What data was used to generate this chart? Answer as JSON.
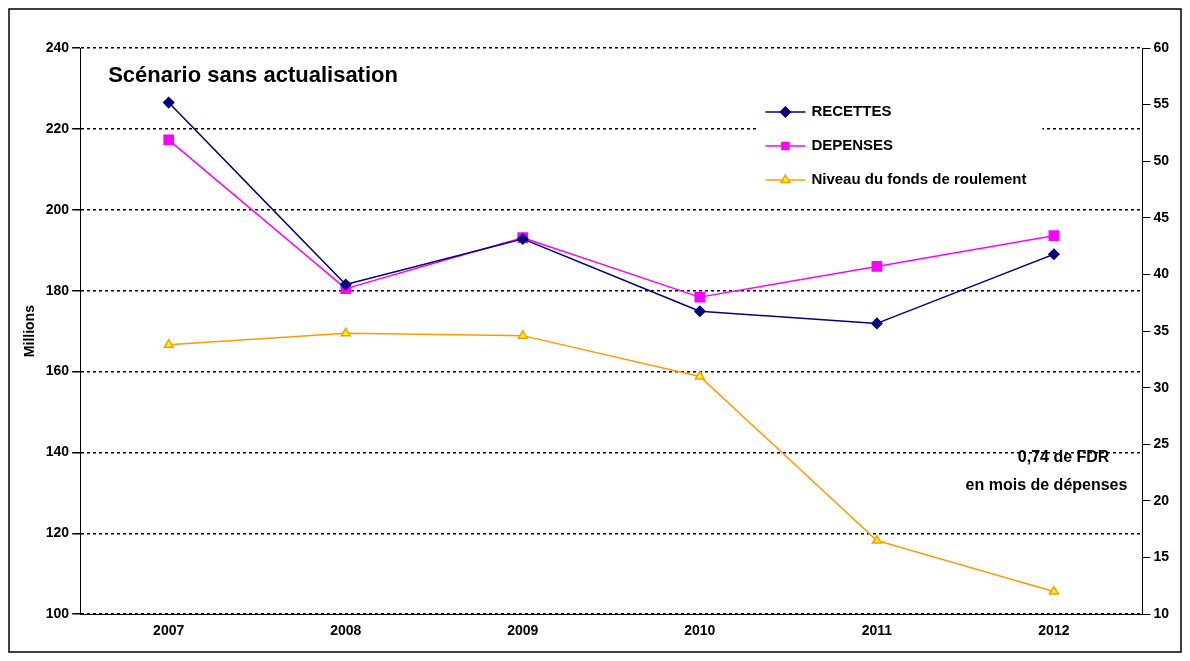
{
  "chart_data": {
    "type": "line",
    "title": "Scénario sans actualisation",
    "ylabel": "Millions",
    "categories": [
      "2007",
      "2008",
      "2009",
      "2010",
      "2011",
      "2012"
    ],
    "series": [
      {
        "name": "RECETTES",
        "color": "#000080",
        "marker": "diamond",
        "values": [
          226.5,
          181.5,
          192.8,
          174.9,
          171.9,
          189
        ]
      },
      {
        "name": "DEPENSES",
        "color": "#ff00ff",
        "marker": "square",
        "values": [
          217.3,
          180.5,
          193.1,
          178.4,
          186,
          193.6
        ]
      },
      {
        "name": "Niveau du fonds de roulement",
        "color": "#ff9900",
        "marker": "triangle",
        "axis": "y2",
        "values": [
          33.8,
          34.8,
          34.6,
          31.0,
          16.5,
          12.0
        ]
      }
    ],
    "ylim": [
      100,
      240
    ],
    "yticks": [
      100,
      120,
      140,
      160,
      180,
      200,
      220,
      240
    ],
    "y2lim": [
      10,
      60
    ],
    "y2ticks": [
      10,
      15,
      20,
      25,
      30,
      35,
      40,
      45,
      50,
      55,
      60
    ],
    "grid": "y",
    "legend": "top right",
    "annotations": [
      "0,74 de FDR",
      "en mois de dépenses"
    ]
  }
}
